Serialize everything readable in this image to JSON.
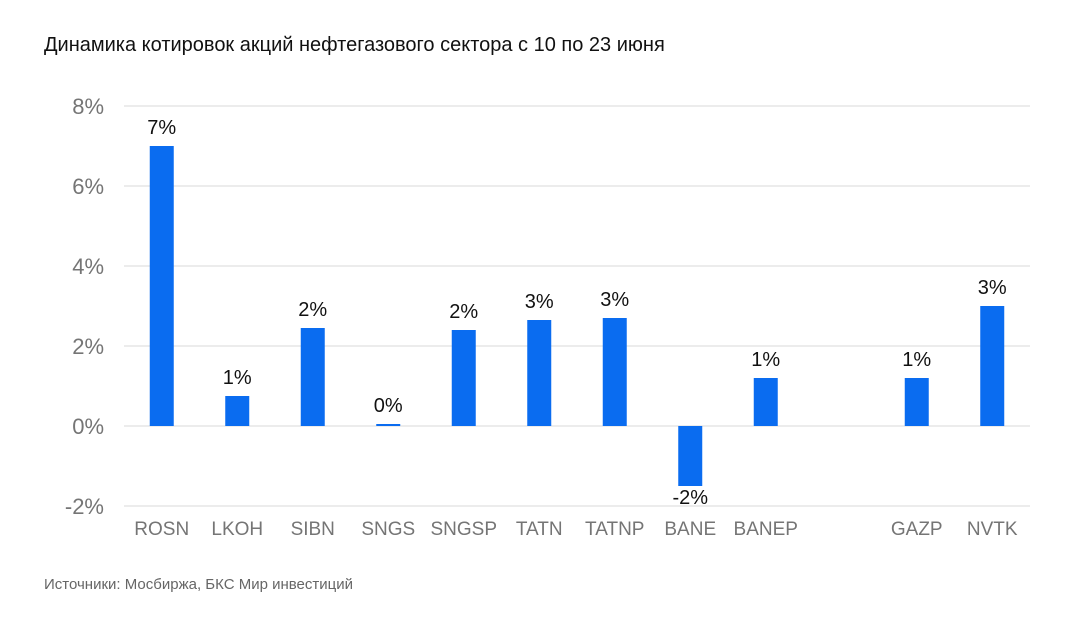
{
  "title": "Динамика котировок акций нефтегазового сектора с 10 по 23 июня",
  "source": "Источники: Мосбиржа, БКС Мир инвестиций",
  "colors": {
    "bar": "#0a6cf0",
    "grid": "#d9d9d9",
    "axis_text": "#757575"
  },
  "chart_data": {
    "type": "bar",
    "title": "Динамика котировок акций нефтегазового сектора с 10 по 23 июня",
    "xlabel": "",
    "ylabel": "",
    "ylim": [
      -2,
      8
    ],
    "yticks": [
      8,
      6,
      4,
      2,
      0,
      -2
    ],
    "ytick_labels": [
      "8%",
      "6%",
      "4%",
      "2%",
      "0%",
      "-2%"
    ],
    "grid": true,
    "categories": [
      "ROSN",
      "LKOH",
      "SIBN",
      "SNGS",
      "SNGSP",
      "TATN",
      "TATNP",
      "BANE",
      "BANEP",
      "",
      "GAZP",
      "NVTK"
    ],
    "values": [
      7.0,
      0.75,
      2.45,
      0.05,
      2.4,
      2.65,
      2.7,
      -1.5,
      1.2,
      null,
      1.2,
      3.0
    ],
    "labels": [
      "7%",
      "1%",
      "2%",
      "0%",
      "2%",
      "3%",
      "3%",
      "-2%",
      "1%",
      "",
      "1%",
      "3%"
    ]
  }
}
